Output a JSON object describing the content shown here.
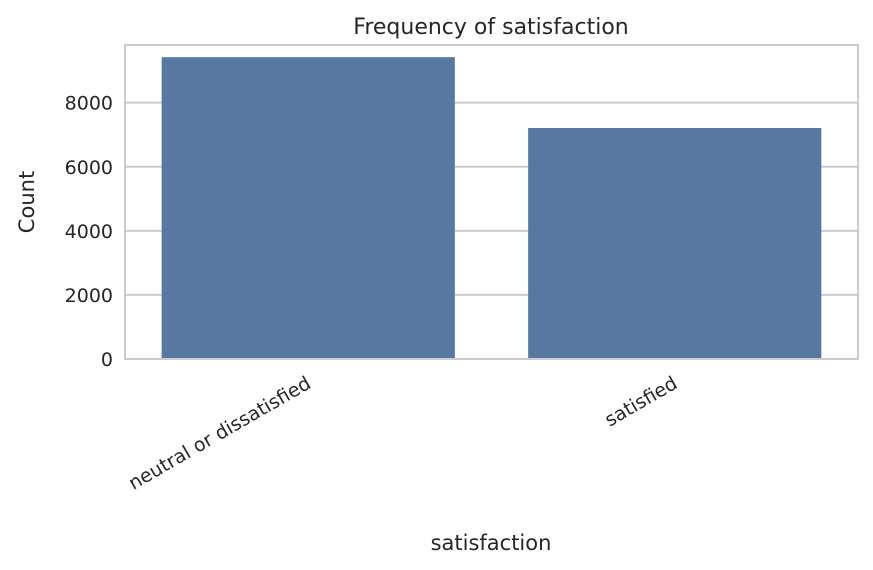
{
  "chart_data": {
    "type": "bar",
    "title": "Frequency of satisfaction",
    "xlabel": "satisfaction",
    "ylabel": "Count",
    "categories": [
      "neutral or dissatisfied",
      "satisfied"
    ],
    "values": [
      9420,
      7210
    ],
    "ylim": [
      0,
      9800
    ],
    "yticks": [
      0,
      2000,
      4000,
      6000,
      8000
    ],
    "ytick_labels": [
      "0",
      "2000",
      "4000",
      "6000",
      "8000"
    ],
    "grid": true,
    "bar_color": "#5778a0",
    "grid_color": "#cccccc",
    "spine_color": "#cccccc"
  }
}
